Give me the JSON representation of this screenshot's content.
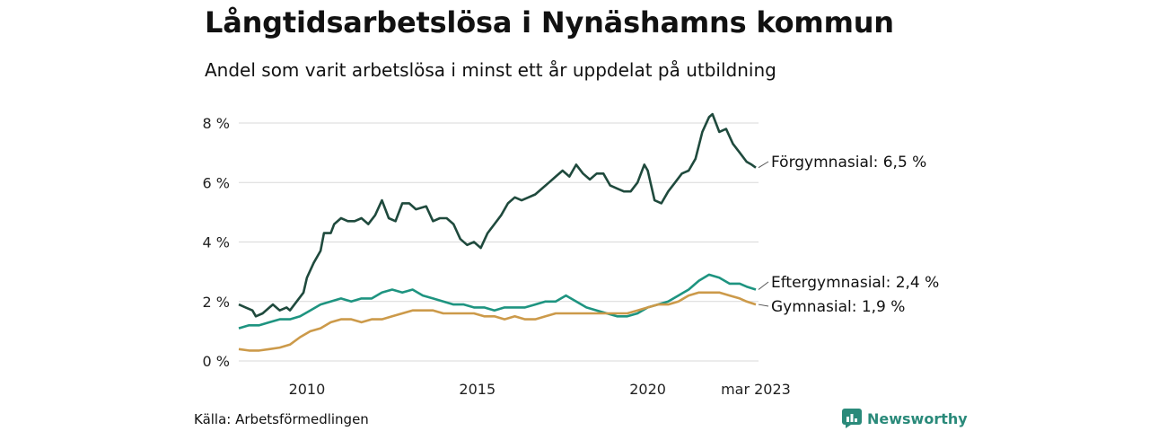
{
  "header": {
    "title": "Långtidsarbetslösa i Nynäshamns kommun",
    "subtitle": "Andel som varit arbetslösa i minst ett år uppdelat på utbildning"
  },
  "footer": {
    "source": "Källa: Arbetsförmedlingen",
    "brand": "Newsworthy"
  },
  "colors": {
    "forgymnasial": "#1f4a3d",
    "eftergymnasial": "#1e9480",
    "gymnasial": "#cc9a4a",
    "grid": "#d9d9d9",
    "brand": "#2a8a7a"
  },
  "chart_data": {
    "type": "line",
    "title": "Långtidsarbetslösa i Nynäshamns kommun",
    "subtitle": "Andel som varit arbetslösa i minst ett år uppdelat på utbildning",
    "xlabel": "",
    "ylabel": "",
    "x_range": [
      2008.0,
      2023.25
    ],
    "ylim": [
      0,
      8.5
    ],
    "y_ticks": [
      0,
      2,
      4,
      6,
      8
    ],
    "y_tick_labels": [
      "0 %",
      "2 %",
      "4 %",
      "6 %",
      "8 %"
    ],
    "x_ticks": [
      2010,
      2015,
      2020,
      2023.17
    ],
    "x_tick_labels": [
      "2010",
      "2015",
      "2020",
      "mar 2023"
    ],
    "grid": true,
    "legend": "end-of-line labels",
    "series": [
      {
        "name": "Förgymnasial",
        "end_label": "Förgymnasial: 6,5 %",
        "color": "#1f4a3d",
        "points": [
          [
            2008.0,
            1.9
          ],
          [
            2008.2,
            1.8
          ],
          [
            2008.4,
            1.7
          ],
          [
            2008.5,
            1.5
          ],
          [
            2008.7,
            1.6
          ],
          [
            2008.9,
            1.8
          ],
          [
            2009.0,
            1.9
          ],
          [
            2009.2,
            1.7
          ],
          [
            2009.4,
            1.8
          ],
          [
            2009.5,
            1.7
          ],
          [
            2009.7,
            2.0
          ],
          [
            2009.9,
            2.3
          ],
          [
            2010.0,
            2.8
          ],
          [
            2010.2,
            3.3
          ],
          [
            2010.4,
            3.7
          ],
          [
            2010.5,
            4.3
          ],
          [
            2010.7,
            4.3
          ],
          [
            2010.8,
            4.6
          ],
          [
            2011.0,
            4.8
          ],
          [
            2011.2,
            4.7
          ],
          [
            2011.4,
            4.7
          ],
          [
            2011.6,
            4.8
          ],
          [
            2011.8,
            4.6
          ],
          [
            2012.0,
            4.9
          ],
          [
            2012.2,
            5.4
          ],
          [
            2012.4,
            4.8
          ],
          [
            2012.6,
            4.7
          ],
          [
            2012.8,
            5.3
          ],
          [
            2013.0,
            5.3
          ],
          [
            2013.2,
            5.1
          ],
          [
            2013.5,
            5.2
          ],
          [
            2013.7,
            4.7
          ],
          [
            2013.9,
            4.8
          ],
          [
            2014.1,
            4.8
          ],
          [
            2014.3,
            4.6
          ],
          [
            2014.5,
            4.1
          ],
          [
            2014.7,
            3.9
          ],
          [
            2014.9,
            4.0
          ],
          [
            2015.1,
            3.8
          ],
          [
            2015.3,
            4.3
          ],
          [
            2015.5,
            4.6
          ],
          [
            2015.7,
            4.9
          ],
          [
            2015.9,
            5.3
          ],
          [
            2016.1,
            5.5
          ],
          [
            2016.3,
            5.4
          ],
          [
            2016.5,
            5.5
          ],
          [
            2016.7,
            5.6
          ],
          [
            2016.9,
            5.8
          ],
          [
            2017.1,
            6.0
          ],
          [
            2017.3,
            6.2
          ],
          [
            2017.5,
            6.4
          ],
          [
            2017.7,
            6.2
          ],
          [
            2017.9,
            6.6
          ],
          [
            2018.1,
            6.3
          ],
          [
            2018.3,
            6.1
          ],
          [
            2018.5,
            6.3
          ],
          [
            2018.7,
            6.3
          ],
          [
            2018.9,
            5.9
          ],
          [
            2019.1,
            5.8
          ],
          [
            2019.3,
            5.7
          ],
          [
            2019.5,
            5.7
          ],
          [
            2019.7,
            6.0
          ],
          [
            2019.9,
            6.6
          ],
          [
            2020.0,
            6.4
          ],
          [
            2020.2,
            5.4
          ],
          [
            2020.4,
            5.3
          ],
          [
            2020.6,
            5.7
          ],
          [
            2020.8,
            6.0
          ],
          [
            2021.0,
            6.3
          ],
          [
            2021.2,
            6.4
          ],
          [
            2021.4,
            6.8
          ],
          [
            2021.6,
            7.7
          ],
          [
            2021.8,
            8.2
          ],
          [
            2021.9,
            8.3
          ],
          [
            2022.1,
            7.7
          ],
          [
            2022.3,
            7.8
          ],
          [
            2022.5,
            7.3
          ],
          [
            2022.7,
            7.0
          ],
          [
            2022.9,
            6.7
          ],
          [
            2023.05,
            6.6
          ],
          [
            2023.17,
            6.5
          ]
        ]
      },
      {
        "name": "Eftergymnasial",
        "end_label": "Eftergymnasial: 2,4 %",
        "color": "#1e9480",
        "points": [
          [
            2008.0,
            1.1
          ],
          [
            2008.3,
            1.2
          ],
          [
            2008.6,
            1.2
          ],
          [
            2008.9,
            1.3
          ],
          [
            2009.2,
            1.4
          ],
          [
            2009.5,
            1.4
          ],
          [
            2009.8,
            1.5
          ],
          [
            2010.1,
            1.7
          ],
          [
            2010.4,
            1.9
          ],
          [
            2010.7,
            2.0
          ],
          [
            2011.0,
            2.1
          ],
          [
            2011.3,
            2.0
          ],
          [
            2011.6,
            2.1
          ],
          [
            2011.9,
            2.1
          ],
          [
            2012.2,
            2.3
          ],
          [
            2012.5,
            2.4
          ],
          [
            2012.8,
            2.3
          ],
          [
            2013.1,
            2.4
          ],
          [
            2013.4,
            2.2
          ],
          [
            2013.7,
            2.1
          ],
          [
            2014.0,
            2.0
          ],
          [
            2014.3,
            1.9
          ],
          [
            2014.6,
            1.9
          ],
          [
            2014.9,
            1.8
          ],
          [
            2015.2,
            1.8
          ],
          [
            2015.5,
            1.7
          ],
          [
            2015.8,
            1.8
          ],
          [
            2016.1,
            1.8
          ],
          [
            2016.4,
            1.8
          ],
          [
            2016.7,
            1.9
          ],
          [
            2017.0,
            2.0
          ],
          [
            2017.3,
            2.0
          ],
          [
            2017.6,
            2.2
          ],
          [
            2017.9,
            2.0
          ],
          [
            2018.2,
            1.8
          ],
          [
            2018.5,
            1.7
          ],
          [
            2018.8,
            1.6
          ],
          [
            2019.1,
            1.5
          ],
          [
            2019.4,
            1.5
          ],
          [
            2019.7,
            1.6
          ],
          [
            2020.0,
            1.8
          ],
          [
            2020.3,
            1.9
          ],
          [
            2020.6,
            2.0
          ],
          [
            2020.9,
            2.2
          ],
          [
            2021.2,
            2.4
          ],
          [
            2021.5,
            2.7
          ],
          [
            2021.8,
            2.9
          ],
          [
            2022.1,
            2.8
          ],
          [
            2022.4,
            2.6
          ],
          [
            2022.7,
            2.6
          ],
          [
            2022.9,
            2.5
          ],
          [
            2023.17,
            2.4
          ]
        ]
      },
      {
        "name": "Gymnasial",
        "end_label": "Gymnasial: 1,9 %",
        "color": "#cc9a4a",
        "points": [
          [
            2008.0,
            0.4
          ],
          [
            2008.3,
            0.35
          ],
          [
            2008.6,
            0.35
          ],
          [
            2008.9,
            0.4
          ],
          [
            2009.2,
            0.45
          ],
          [
            2009.5,
            0.55
          ],
          [
            2009.8,
            0.8
          ],
          [
            2010.1,
            1.0
          ],
          [
            2010.4,
            1.1
          ],
          [
            2010.7,
            1.3
          ],
          [
            2011.0,
            1.4
          ],
          [
            2011.3,
            1.4
          ],
          [
            2011.6,
            1.3
          ],
          [
            2011.9,
            1.4
          ],
          [
            2012.2,
            1.4
          ],
          [
            2012.5,
            1.5
          ],
          [
            2012.8,
            1.6
          ],
          [
            2013.1,
            1.7
          ],
          [
            2013.4,
            1.7
          ],
          [
            2013.7,
            1.7
          ],
          [
            2014.0,
            1.6
          ],
          [
            2014.3,
            1.6
          ],
          [
            2014.6,
            1.6
          ],
          [
            2014.9,
            1.6
          ],
          [
            2015.2,
            1.5
          ],
          [
            2015.5,
            1.5
          ],
          [
            2015.8,
            1.4
          ],
          [
            2016.1,
            1.5
          ],
          [
            2016.4,
            1.4
          ],
          [
            2016.7,
            1.4
          ],
          [
            2017.0,
            1.5
          ],
          [
            2017.3,
            1.6
          ],
          [
            2017.6,
            1.6
          ],
          [
            2017.9,
            1.6
          ],
          [
            2018.2,
            1.6
          ],
          [
            2018.5,
            1.6
          ],
          [
            2018.8,
            1.6
          ],
          [
            2019.1,
            1.6
          ],
          [
            2019.4,
            1.6
          ],
          [
            2019.7,
            1.7
          ],
          [
            2020.0,
            1.8
          ],
          [
            2020.3,
            1.9
          ],
          [
            2020.6,
            1.9
          ],
          [
            2020.9,
            2.0
          ],
          [
            2021.2,
            2.2
          ],
          [
            2021.5,
            2.3
          ],
          [
            2021.8,
            2.3
          ],
          [
            2022.1,
            2.3
          ],
          [
            2022.4,
            2.2
          ],
          [
            2022.7,
            2.1
          ],
          [
            2022.9,
            2.0
          ],
          [
            2023.17,
            1.9
          ]
        ]
      }
    ]
  }
}
